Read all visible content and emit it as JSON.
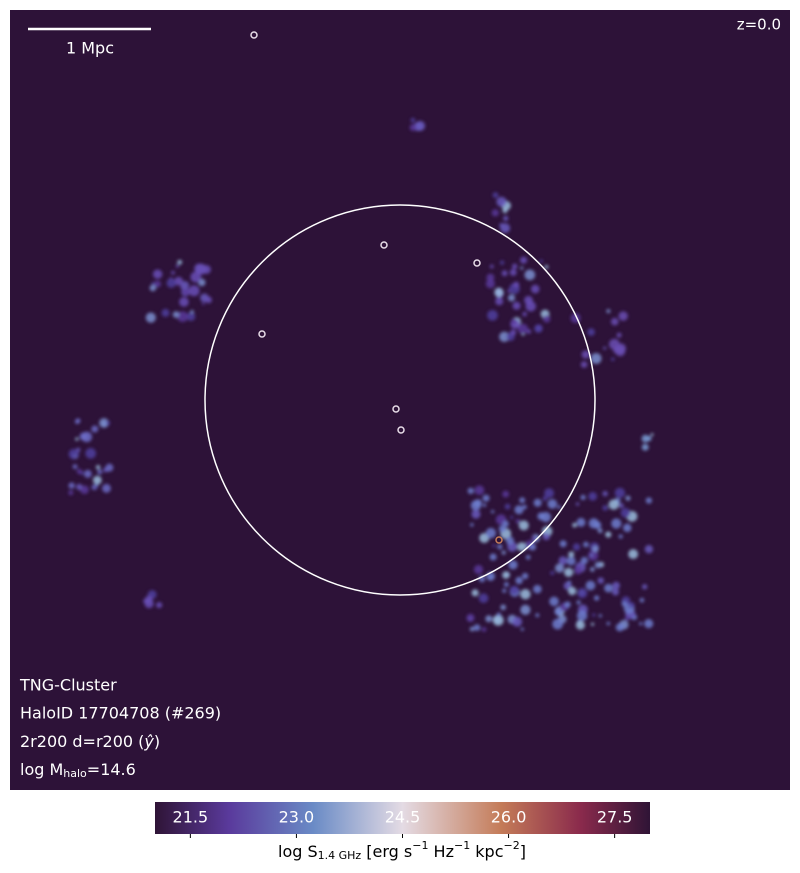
{
  "scale_bar": {
    "label": "1 Mpc"
  },
  "redshift": "z=0.0",
  "info": {
    "simulation": "TNG-Cluster",
    "halo": "HaloID 17704708 (#269)",
    "projection": [
      "2r200 d=r200 (",
      "ŷ",
      ")"
    ],
    "mass": [
      "log M",
      "halo",
      "=14.6"
    ]
  },
  "colorbar": {
    "lim": [
      21.0,
      28.0
    ],
    "ticks": [
      21.5,
      {
        "value": 23.0,
        "label": "23.0"
      },
      24.5,
      {
        "value": 26.0,
        "label": "26.0"
      },
      27.5
    ],
    "label": [
      "log S",
      "1.4 GHz",
      " [erg s",
      "−1",
      " Hz",
      "−1",
      " kpc",
      "−2",
      "]"
    ]
  }
}
